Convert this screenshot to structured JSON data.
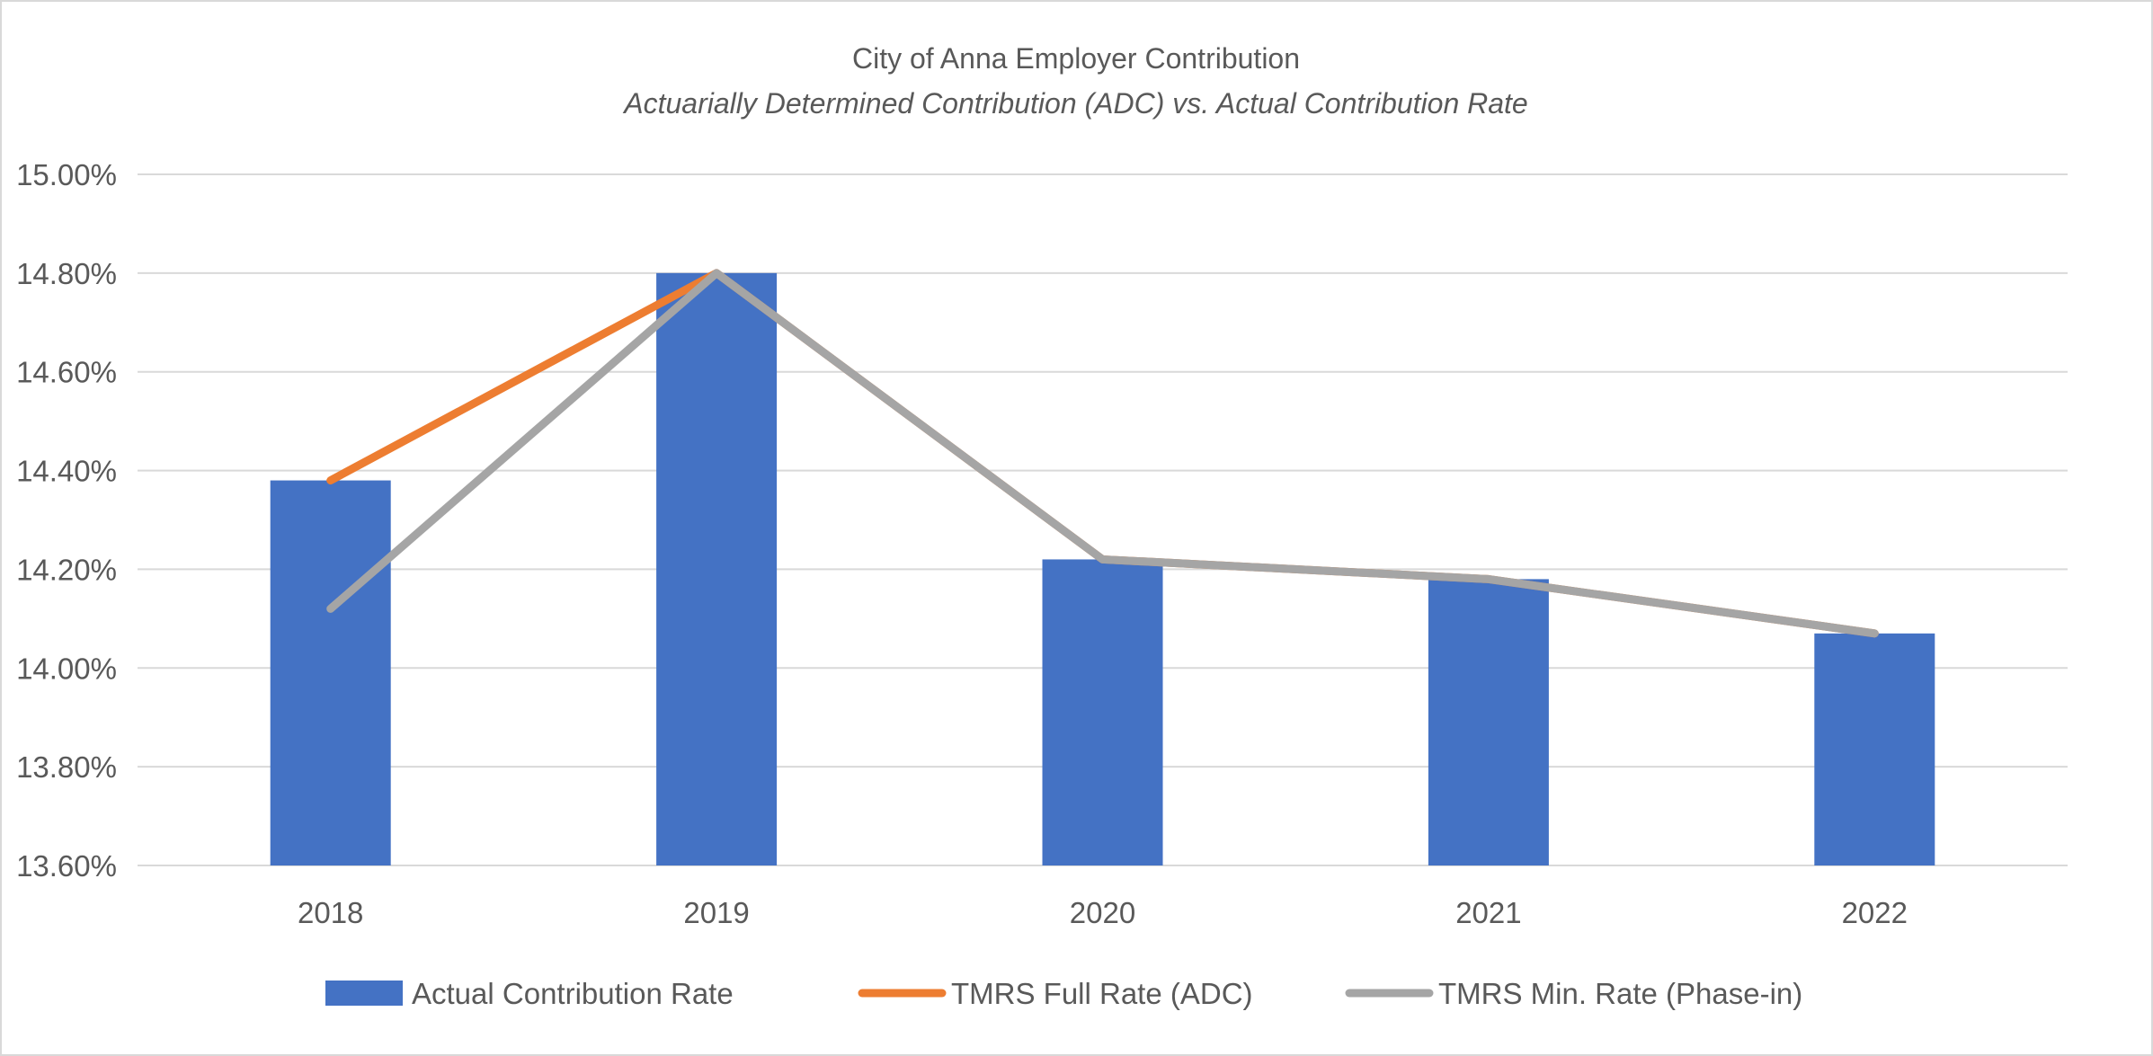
{
  "chart_data": {
    "type": "bar+line",
    "title": "City of Anna Employer Contribution",
    "subtitle": "Actuarially Determined Contribution (ADC) vs. Actual Contribution Rate",
    "xlabel": "",
    "ylabel": "",
    "categories": [
      "2018",
      "2019",
      "2020",
      "2021",
      "2022"
    ],
    "ylim": [
      13.6,
      15.0
    ],
    "yticks": [
      "13.60%",
      "13.80%",
      "14.00%",
      "14.20%",
      "14.40%",
      "14.60%",
      "14.80%",
      "15.00%"
    ],
    "ytick_values": [
      13.6,
      13.8,
      14.0,
      14.2,
      14.4,
      14.6,
      14.8,
      15.0
    ],
    "grid": true,
    "legend_position": "bottom",
    "series": [
      {
        "name": "Actual Contribution Rate",
        "kind": "bar",
        "color": "#4472C4",
        "values": [
          14.38,
          14.8,
          14.22,
          14.18,
          14.07
        ]
      },
      {
        "name": "TMRS Full Rate (ADC)",
        "kind": "line",
        "color": "#ED7D31",
        "values": [
          14.38,
          14.8,
          14.22,
          14.18,
          14.07
        ]
      },
      {
        "name": "TMRS Min. Rate (Phase-in)",
        "kind": "line",
        "color": "#A5A5A5",
        "values": [
          14.12,
          14.8,
          14.22,
          14.18,
          14.07
        ]
      }
    ]
  }
}
